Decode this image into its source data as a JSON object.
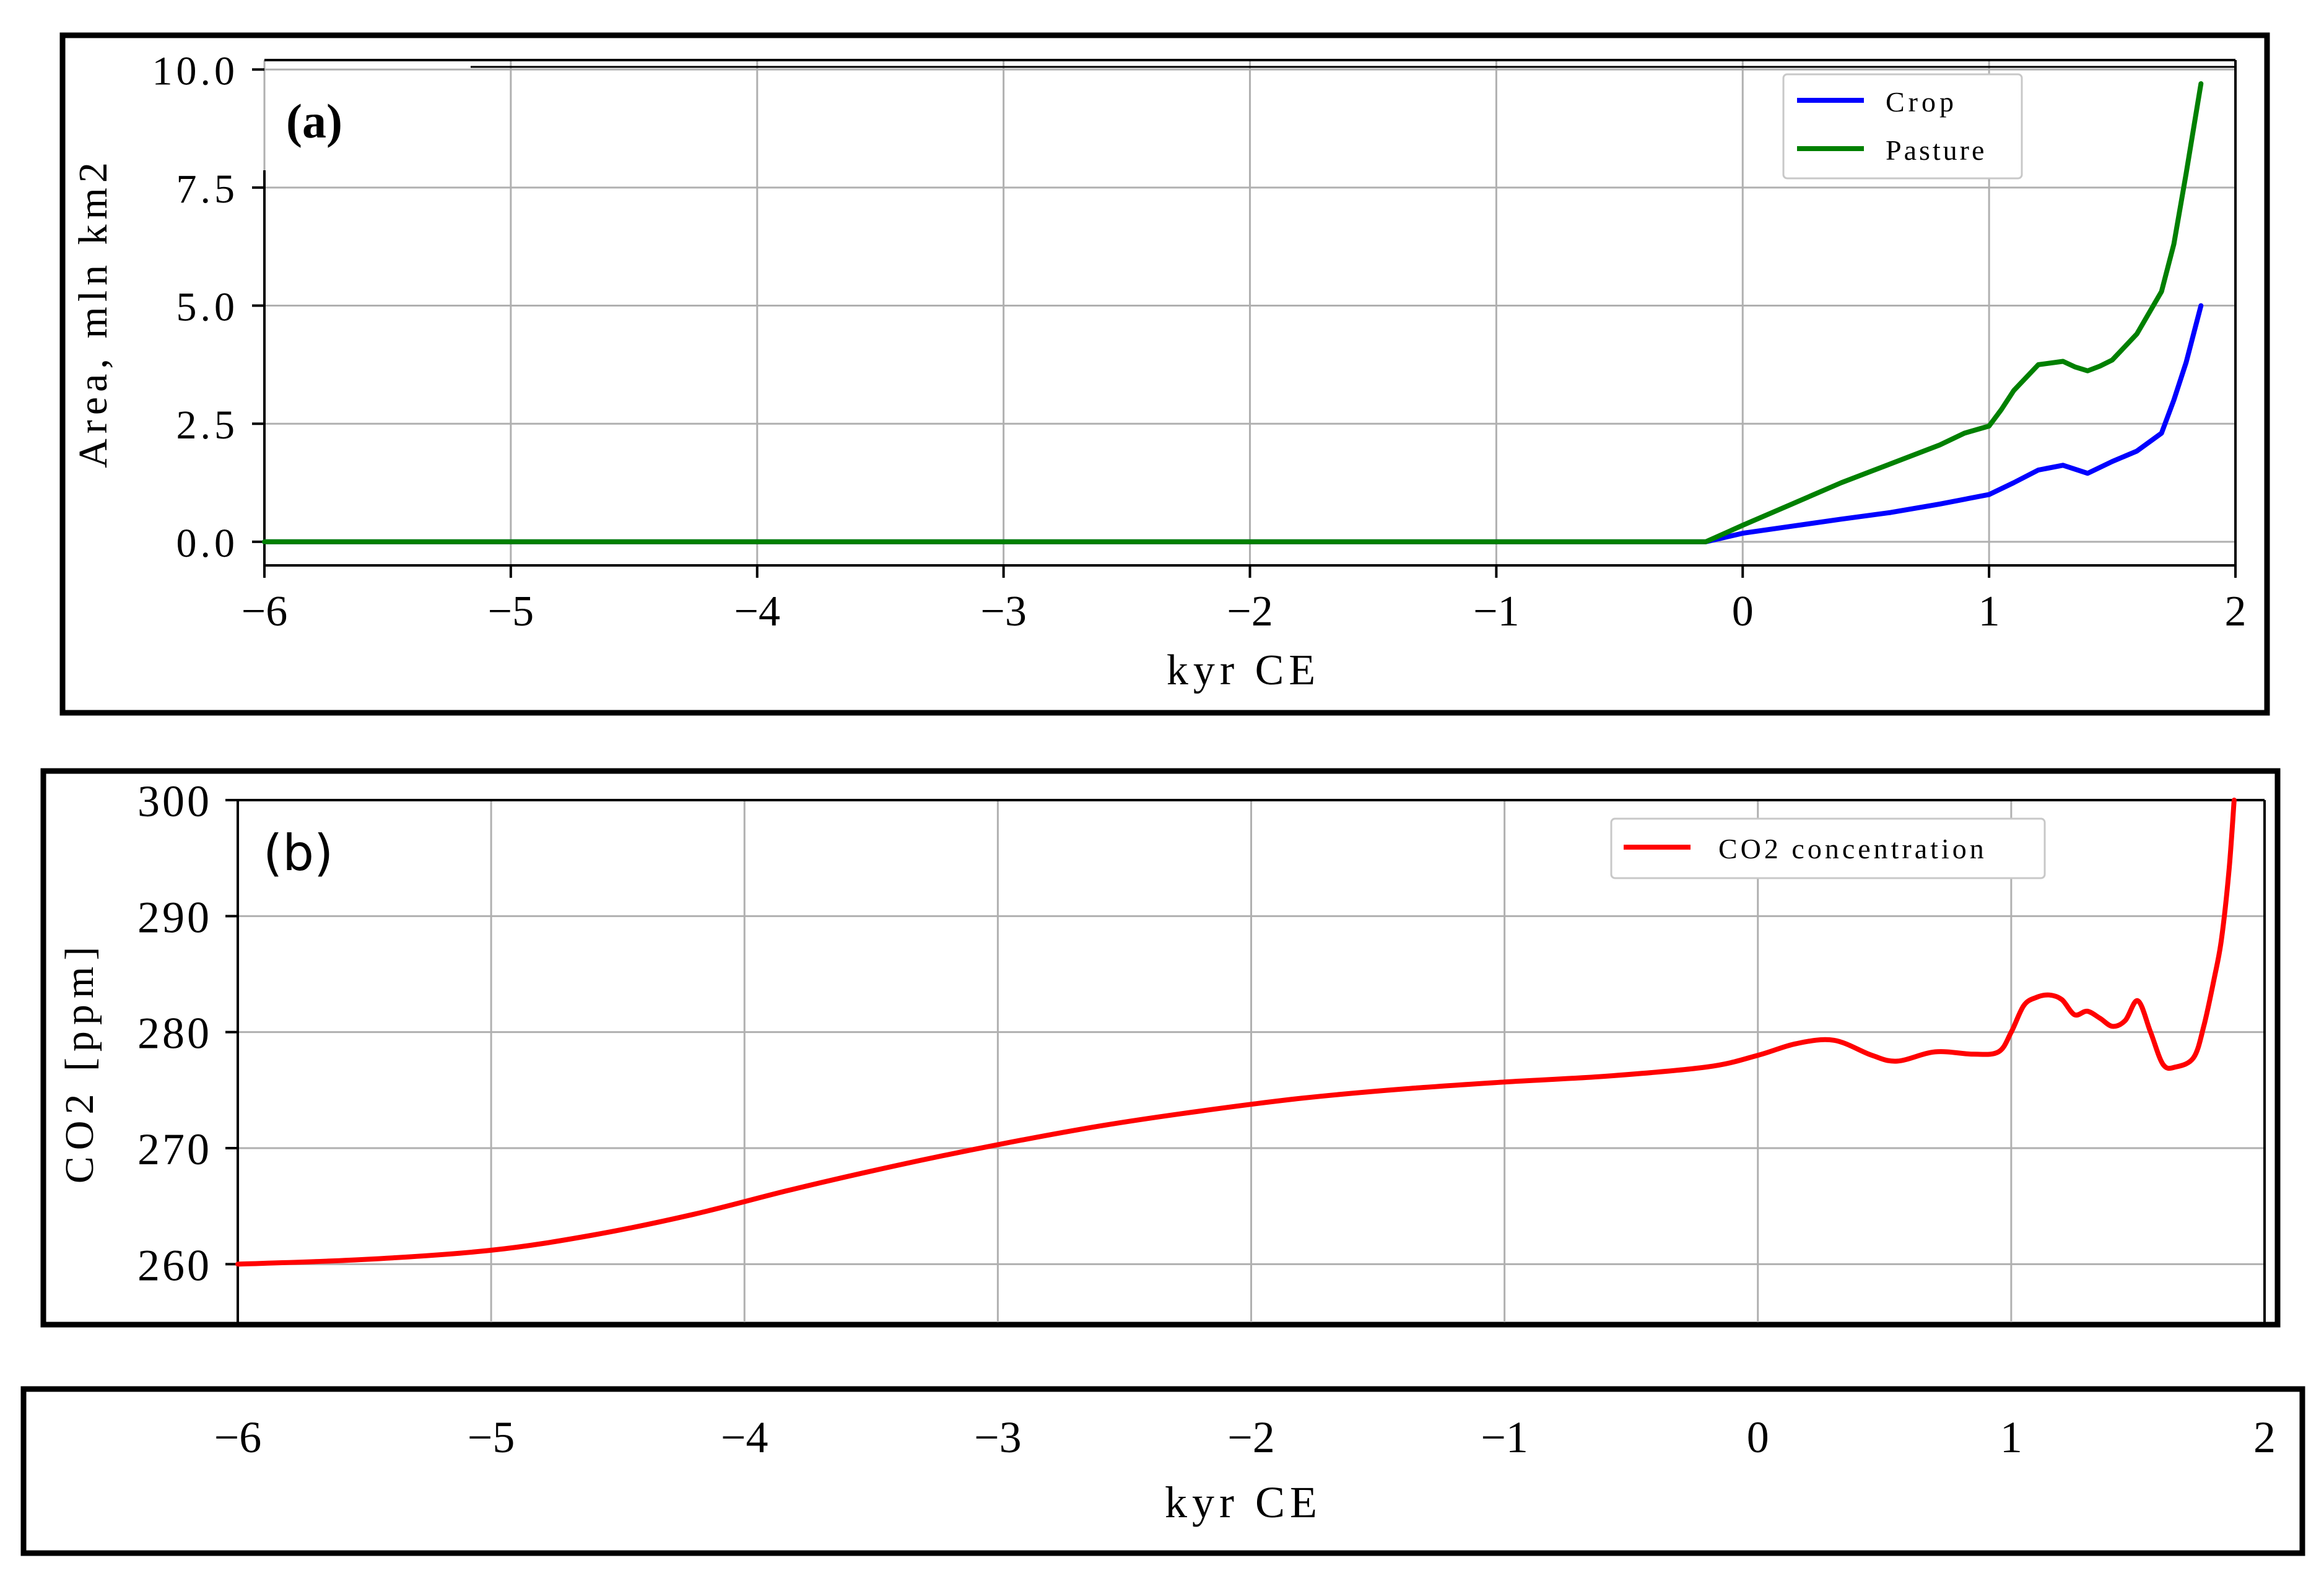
{
  "chart_data": [
    {
      "type": "line",
      "panel_label": "(a)",
      "xlabel": "kyr CE",
      "ylabel": "Area, mln km2",
      "xlim": [
        -6,
        2
      ],
      "ylim": [
        -0.5,
        10.2
      ],
      "x_ticks": [
        -6,
        -5,
        -4,
        -3,
        -2,
        -1,
        0,
        1,
        2
      ],
      "x_tick_labels": [
        "−6",
        "−5",
        "−4",
        "−3",
        "−2",
        "−1",
        "0",
        "1",
        "2"
      ],
      "y_ticks": [
        0,
        2.5,
        5,
        7.5,
        10
      ],
      "y_tick_labels": [
        "0.0",
        "2.5",
        "5.0",
        "7.5",
        "10.0"
      ],
      "grid": true,
      "legend_position": "top-right",
      "series": [
        {
          "name": "Crop",
          "color": "#0000ff",
          "x": [
            -6,
            -0.15,
            0,
            0.2,
            0.4,
            0.6,
            0.8,
            1.0,
            1.1,
            1.2,
            1.3,
            1.4,
            1.5,
            1.6,
            1.7,
            1.75,
            1.8,
            1.86
          ],
          "y": [
            0,
            0,
            0.18,
            0.33,
            0.48,
            0.62,
            0.8,
            1.0,
            1.25,
            1.52,
            1.62,
            1.45,
            1.7,
            1.92,
            2.3,
            3.0,
            3.8,
            5.0
          ]
        },
        {
          "name": "Pasture",
          "color": "#008000",
          "x": [
            -6,
            -0.15,
            0,
            0.2,
            0.4,
            0.6,
            0.8,
            0.9,
            1.0,
            1.05,
            1.1,
            1.2,
            1.3,
            1.35,
            1.4,
            1.45,
            1.5,
            1.6,
            1.7,
            1.75,
            1.8,
            1.86
          ],
          "y": [
            0,
            0,
            0.35,
            0.8,
            1.25,
            1.65,
            2.05,
            2.3,
            2.45,
            2.8,
            3.2,
            3.75,
            3.82,
            3.7,
            3.62,
            3.72,
            3.85,
            4.4,
            5.3,
            6.3,
            7.8,
            9.7
          ]
        }
      ]
    },
    {
      "type": "line",
      "panel_label": "(b)",
      "xlabel": "kyr CE",
      "ylabel": "CO2 [ppm]",
      "xlim": [
        -6,
        2
      ],
      "ylim": [
        255,
        300
      ],
      "x_ticks": [
        -6,
        -5,
        -4,
        -3,
        -2,
        -1,
        0,
        1,
        2
      ],
      "x_tick_labels": [
        "−6",
        "−5",
        "−4",
        "−3",
        "−2",
        "−1",
        "0",
        "1",
        "2"
      ],
      "y_ticks": [
        260,
        270,
        280,
        290,
        300
      ],
      "y_tick_labels": [
        "260",
        "270",
        "280",
        "290",
        "300"
      ],
      "grid": true,
      "legend_position": "top-right",
      "series": [
        {
          "name": "CO2 concentration",
          "color": "#ff0000",
          "x": [
            -6,
            -5.5,
            -5.0,
            -4.6,
            -4.2,
            -3.8,
            -3.4,
            -3.0,
            -2.6,
            -2.2,
            -1.8,
            -1.4,
            -1.0,
            -0.6,
            -0.2,
            0.0,
            0.15,
            0.3,
            0.45,
            0.55,
            0.7,
            0.85,
            0.95,
            1.0,
            1.05,
            1.1,
            1.15,
            1.2,
            1.25,
            1.3,
            1.35,
            1.4,
            1.45,
            1.5,
            1.55,
            1.6,
            1.65,
            1.72,
            1.76,
            1.8,
            1.83,
            1.86,
            1.88
          ],
          "y": [
            260,
            260.4,
            261.2,
            262.5,
            264.3,
            266.5,
            268.5,
            270.3,
            271.9,
            273.2,
            274.3,
            275.1,
            275.7,
            276.2,
            277.0,
            278.0,
            279.0,
            279.3,
            278.0,
            277.5,
            278.3,
            278.1,
            278.3,
            280.0,
            282.3,
            283.0,
            283.2,
            282.8,
            281.5,
            281.8,
            281.2,
            280.5,
            281.0,
            282.7,
            280.0,
            277.2,
            277.0,
            277.8,
            280.5,
            284.5,
            288.0,
            294.0,
            300.0
          ]
        }
      ]
    }
  ]
}
